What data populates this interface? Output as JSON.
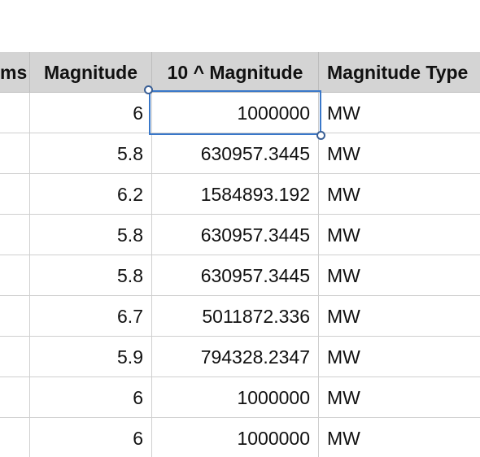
{
  "headers": {
    "col_prev_partial": "ms",
    "magnitude": "Magnitude",
    "ten_pow_magnitude": "10 ^ Magnitude",
    "magnitude_type": "Magnitude Type"
  },
  "rows": [
    {
      "magnitude": "6",
      "ten_pow": "1000000",
      "type": "MW"
    },
    {
      "magnitude": "5.8",
      "ten_pow": "630957.3445",
      "type": "MW"
    },
    {
      "magnitude": "6.2",
      "ten_pow": "1584893.192",
      "type": "MW"
    },
    {
      "magnitude": "5.8",
      "ten_pow": "630957.3445",
      "type": "MW"
    },
    {
      "magnitude": "5.8",
      "ten_pow": "630957.3445",
      "type": "MW"
    },
    {
      "magnitude": "6.7",
      "ten_pow": "5011872.336",
      "type": "MW"
    },
    {
      "magnitude": "5.9",
      "ten_pow": "794328.2347",
      "type": "MW"
    },
    {
      "magnitude": "6",
      "ten_pow": "1000000",
      "type": "MW"
    },
    {
      "magnitude": "6",
      "ten_pow": "1000000",
      "type": "MW"
    }
  ],
  "colors": {
    "header_bg": "#d4d4d4",
    "selection": "#3a78c9",
    "grid": "#cfcfcf"
  }
}
